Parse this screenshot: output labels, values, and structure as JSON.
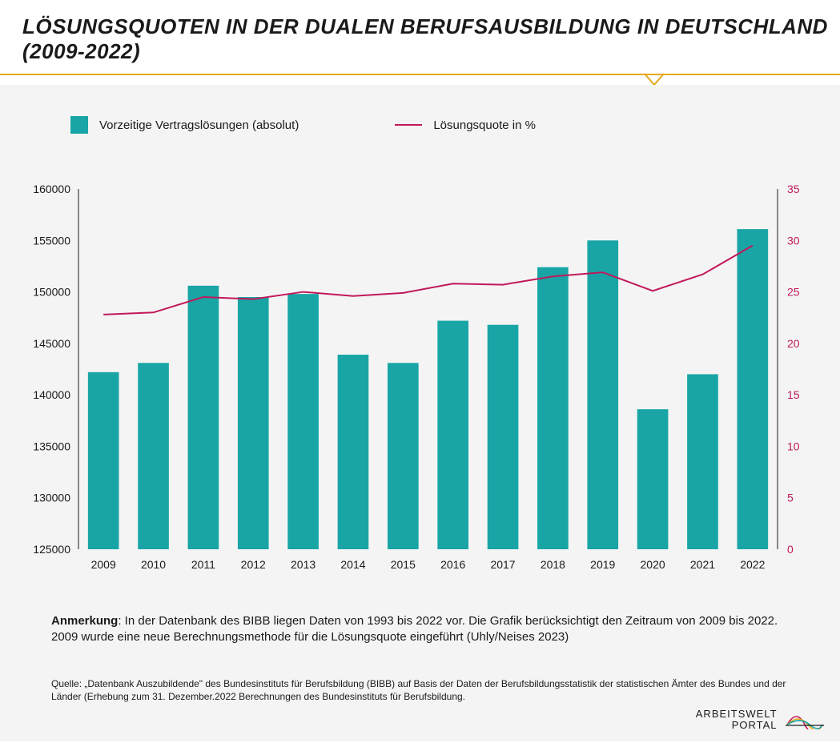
{
  "title": "LÖSUNGSQUOTEN IN DER DUALEN BERUFSAUSBILDUNG IN DEUTSCHLAND (2009-2022)",
  "legend": {
    "bars_label": "Vorzeitige Vertragslösungen (absolut)",
    "line_label": "Lösungsquote in %"
  },
  "colors": {
    "bar": "#19a5a5",
    "line": "#c2185b",
    "accent": "#e6a817",
    "background": "#f4f4f4",
    "text": "#1a1a1a",
    "axis": "#1a1a1a",
    "right_axis_text": "#c2185b"
  },
  "chart": {
    "type": "bar+line",
    "categories": [
      "2009",
      "2010",
      "2011",
      "2012",
      "2013",
      "2014",
      "2015",
      "2016",
      "2017",
      "2018",
      "2019",
      "2020",
      "2021",
      "2022"
    ],
    "bars": [
      142200,
      143100,
      150600,
      149500,
      149800,
      143900,
      143100,
      147200,
      146800,
      152400,
      155000,
      138600,
      142000,
      156100
    ],
    "line": [
      22.8,
      23.0,
      24.5,
      24.3,
      25.0,
      24.6,
      24.9,
      25.8,
      25.7,
      26.5,
      26.9,
      25.1,
      26.7,
      29.5
    ],
    "y_left": {
      "min": 125000,
      "max": 160000,
      "step": 5000
    },
    "y_right": {
      "min": 0,
      "max": 35,
      "step": 5
    },
    "bar_width_ratio": 0.62,
    "line_width": 2,
    "fontsize_axis": 14
  },
  "note_label": "Anmerkung",
  "note_text": ": In der Datenbank des BIBB liegen Daten von 1993 bis 2022 vor. Die Grafik berücksichtigt den Zeitraum von 2009 bis 2022. 2009 wurde eine neue Berechnungsmethode für die Lösungsquote eingeführt (Uhly/Neises 2023)",
  "source": "Quelle: „Datenbank Auszubildende\" des Bundesinstituts für Berufsbildung (BIBB) auf Basis der Daten der Berufsbildungsstatistik der statistischen Ämter des Bundes und der Länder (Erhebung zum 31. Dezember.2022  Berechnungen des Bundesinstituts für Berufsbildung.",
  "brand": {
    "line1": "ARBEITSWELT",
    "line2": "PORTAL"
  }
}
